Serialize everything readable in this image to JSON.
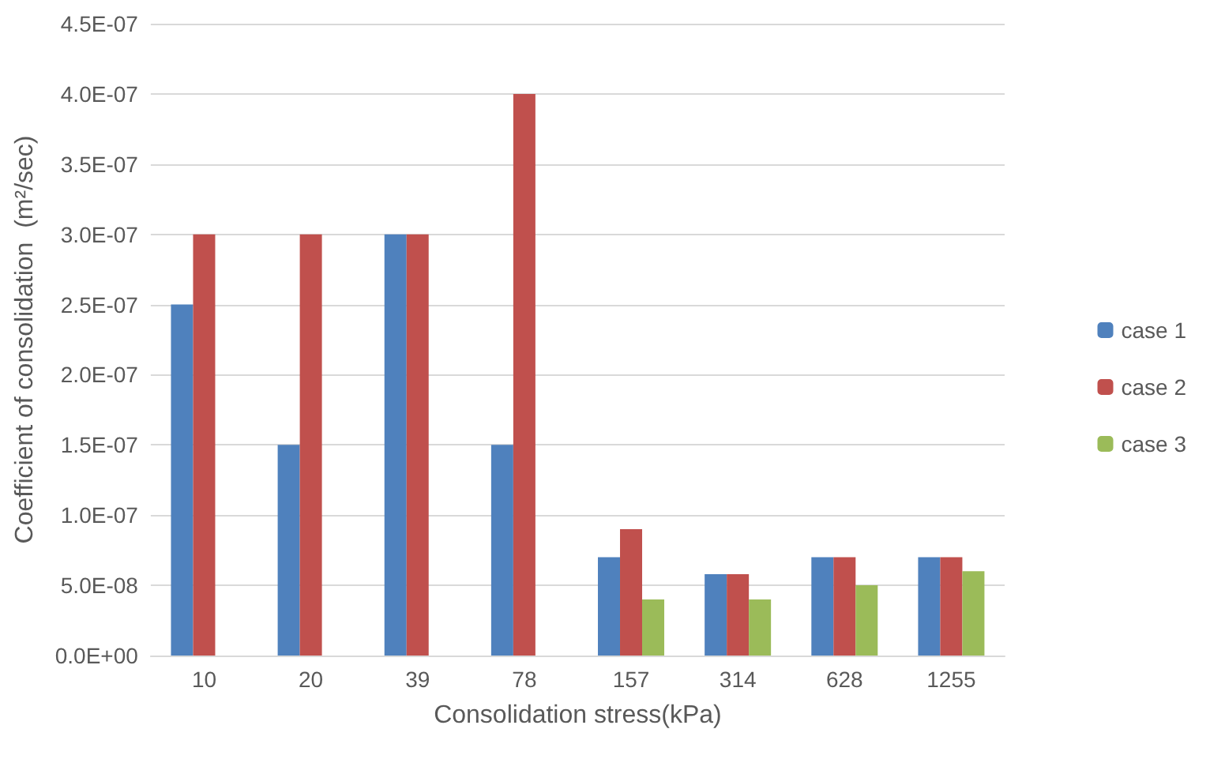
{
  "chart_data": {
    "type": "bar",
    "xlabel": "Consolidation stress(kPa)",
    "ylabel": "Coefficient of consolidation  (m²/sec)",
    "categories": [
      "10",
      "20",
      "39",
      "78",
      "157",
      "314",
      "628",
      "1255"
    ],
    "series": [
      {
        "name": "case 1",
        "color": "#4f81bd",
        "values": [
          2.5e-07,
          1.5e-07,
          3e-07,
          1.5e-07,
          7e-08,
          5.8e-08,
          7e-08,
          7e-08
        ]
      },
      {
        "name": "case 2",
        "color": "#c0504d",
        "values": [
          3e-07,
          3e-07,
          3e-07,
          4e-07,
          9e-08,
          5.8e-08,
          7e-08,
          7e-08
        ]
      },
      {
        "name": "case 3",
        "color": "#9bbb59",
        "values": [
          null,
          null,
          null,
          null,
          4e-08,
          4e-08,
          5e-08,
          6e-08
        ]
      }
    ],
    "ylim": [
      0,
      4.5e-07
    ],
    "yticks": [
      {
        "value": 0,
        "label": "0.0E+00"
      },
      {
        "value": 5e-08,
        "label": "5.0E-08"
      },
      {
        "value": 1e-07,
        "label": "1.0E-07"
      },
      {
        "value": 1.5e-07,
        "label": "1.5E-07"
      },
      {
        "value": 2e-07,
        "label": "2.0E-07"
      },
      {
        "value": 2.5e-07,
        "label": "2.5E-07"
      },
      {
        "value": 3e-07,
        "label": "3.0E-07"
      },
      {
        "value": 3.5e-07,
        "label": "3.5E-07"
      },
      {
        "value": 4e-07,
        "label": "4.0E-07"
      },
      {
        "value": 4.5e-07,
        "label": "4.5E-07"
      }
    ],
    "grid": "y",
    "legend": "right"
  }
}
